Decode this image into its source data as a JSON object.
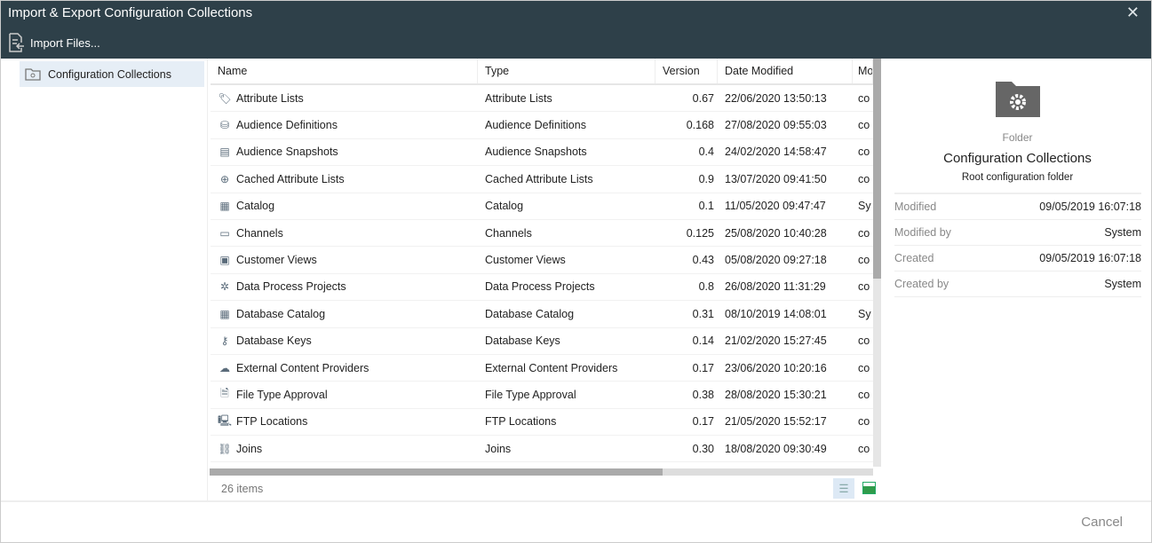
{
  "window": {
    "title": "Import & Export Configuration Collections",
    "close_icon": "close-icon"
  },
  "toolbar": {
    "import_label": "Import Files..."
  },
  "sidebar": {
    "items": [
      {
        "label": "Configuration Collections",
        "icon": "folder-gear-icon",
        "selected": true
      }
    ]
  },
  "grid": {
    "columns": [
      "Name",
      "Type",
      "Version",
      "Date Modified",
      "Mo"
    ],
    "rows": [
      {
        "name": "Attribute Lists",
        "type": "Attribute Lists",
        "version": "0.67",
        "date": "22/06/2020 13:50:13",
        "mod": "co",
        "icon": "tag-icon",
        "glyph": "🏷"
      },
      {
        "name": "Audience Definitions",
        "type": "Audience Definitions",
        "version": "0.168",
        "date": "27/08/2020 09:55:03",
        "mod": "co",
        "icon": "database-icon",
        "glyph": "⛁"
      },
      {
        "name": "Audience Snapshots",
        "type": "Audience Snapshots",
        "version": "0.4",
        "date": "24/02/2020 14:58:47",
        "mod": "co",
        "icon": "snapshot-icon",
        "glyph": "▤"
      },
      {
        "name": "Cached Attribute Lists",
        "type": "Cached Attribute Lists",
        "version": "0.9",
        "date": "13/07/2020 09:41:50",
        "mod": "co",
        "icon": "globe-icon",
        "glyph": "⊕"
      },
      {
        "name": "Catalog",
        "type": "Catalog",
        "version": "0.1",
        "date": "11/05/2020 09:47:47",
        "mod": "Sy",
        "icon": "catalog-icon",
        "glyph": "▦"
      },
      {
        "name": "Channels",
        "type": "Channels",
        "version": "0.125",
        "date": "25/08/2020 10:40:28",
        "mod": "co",
        "icon": "channel-icon",
        "glyph": "▭"
      },
      {
        "name": "Customer Views",
        "type": "Customer Views",
        "version": "0.43",
        "date": "05/08/2020 09:27:18",
        "mod": "co",
        "icon": "contact-card-icon",
        "glyph": "▣"
      },
      {
        "name": "Data Process Projects",
        "type": "Data Process Projects",
        "version": "0.8",
        "date": "26/08/2020 11:31:29",
        "mod": "co",
        "icon": "process-icon",
        "glyph": "✲"
      },
      {
        "name": "Database Catalog",
        "type": "Database Catalog",
        "version": "0.31",
        "date": "08/10/2019 14:08:01",
        "mod": "Sy",
        "icon": "catalog-icon",
        "glyph": "▦"
      },
      {
        "name": "Database Keys",
        "type": "Database Keys",
        "version": "0.14",
        "date": "21/02/2020 15:27:45",
        "mod": "co",
        "icon": "key-icon",
        "glyph": "⚷"
      },
      {
        "name": "External Content Providers",
        "type": "External Content Providers",
        "version": "0.17",
        "date": "23/06/2020 10:20:16",
        "mod": "co",
        "icon": "cloud-icon",
        "glyph": "☁"
      },
      {
        "name": "File Type Approval",
        "type": "File Type Approval",
        "version": "0.38",
        "date": "28/08/2020 15:30:21",
        "mod": "co",
        "icon": "file-check-icon",
        "glyph": "🗎"
      },
      {
        "name": "FTP Locations",
        "type": "FTP Locations",
        "version": "0.17",
        "date": "21/05/2020 15:52:17",
        "mod": "co",
        "icon": "server-icon",
        "glyph": "🖳"
      },
      {
        "name": "Joins",
        "type": "Joins",
        "version": "0.30",
        "date": "18/08/2020 09:30:49",
        "mod": "co",
        "icon": "link-icon",
        "glyph": "⛓"
      }
    ]
  },
  "status": {
    "count": "26 items"
  },
  "details": {
    "type": "Folder",
    "name": "Configuration Collections",
    "description": "Root configuration folder",
    "properties": [
      {
        "label": "Modified",
        "value": "09/05/2019 16:07:18"
      },
      {
        "label": "Modified by",
        "value": "System"
      },
      {
        "label": "Created",
        "value": "09/05/2019 16:07:18"
      },
      {
        "label": "Created by",
        "value": "System"
      }
    ]
  },
  "footer": {
    "cancel_label": "Cancel"
  },
  "colors": {
    "header_bg": "#2e4049",
    "selection": "#e6eef6"
  }
}
